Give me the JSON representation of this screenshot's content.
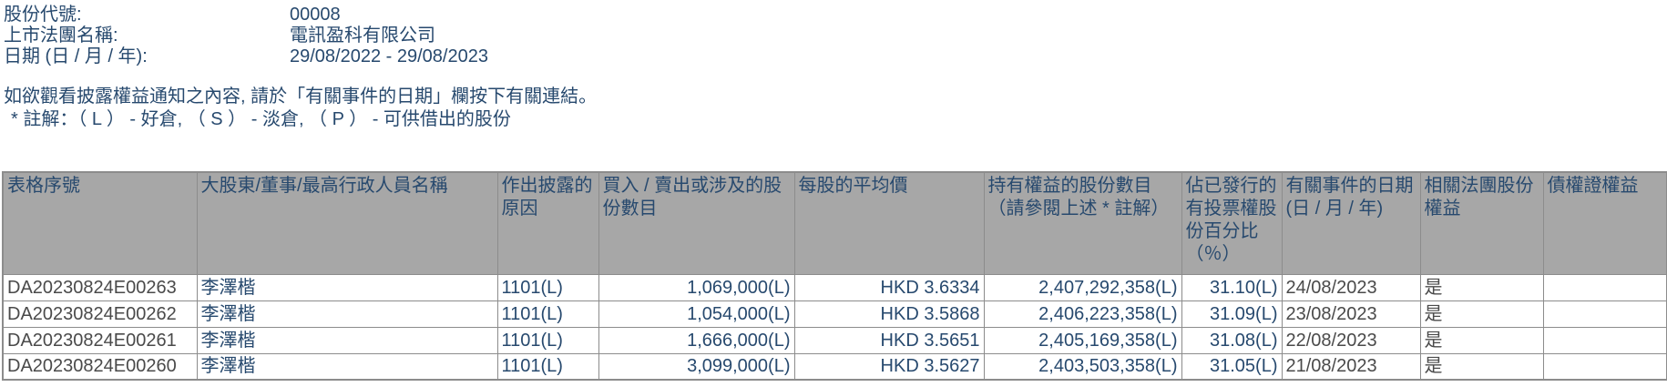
{
  "info": {
    "stock_code_label": "股份代號:",
    "stock_code": "00008",
    "corporation_label": "上市法團名稱:",
    "corporation": "電訊盈科有限公司",
    "date_label": "日期 (日 / 月 / 年):",
    "date_range": "29/08/2022 - 29/08/2023"
  },
  "notes": {
    "instruction": "如欲觀看披露權益通知之內容, 請於「有關事件的日期」欄按下有關連結。",
    "legend": "* 註解：（ L ） - 好倉, （ S ） - 淡倉, （ P ） - 可供借出的股份"
  },
  "table": {
    "headers": [
      "表格序號",
      "大股東/董事/最高行政人員名稱",
      "作出披露的原因",
      "買入 / 賣出或涉及的股份數目",
      "每股的平均價",
      "持有權益的股份數目（請參閱上述 * 註解）",
      "佔已發行的有投票權股份百分比（％）",
      "有關事件的日期 (日 / 月 / 年)",
      "相關法團股份權益",
      "債權證權益"
    ],
    "rows": [
      {
        "serial": "DA20230824E00263",
        "name": "李澤楷",
        "reason": "1101(L)",
        "shares": "1,069,000(L)",
        "price": "HKD 3.6334",
        "holding": "2,407,292,358(L)",
        "pct": "31.10(L)",
        "date": "24/08/2023",
        "related": "是",
        "debenture": ""
      },
      {
        "serial": "DA20230824E00262",
        "name": "李澤楷",
        "reason": "1101(L)",
        "shares": "1,054,000(L)",
        "price": "HKD 3.5868",
        "holding": "2,406,223,358(L)",
        "pct": "31.09(L)",
        "date": "23/08/2023",
        "related": "是",
        "debenture": ""
      },
      {
        "serial": "DA20230824E00261",
        "name": "李澤楷",
        "reason": "1101(L)",
        "shares": "1,666,000(L)",
        "price": "HKD 3.5651",
        "holding": "2,405,169,358(L)",
        "pct": "31.08(L)",
        "date": "22/08/2023",
        "related": "是",
        "debenture": ""
      },
      {
        "serial": "DA20230824E00260",
        "name": "李澤楷",
        "reason": "1101(L)",
        "shares": "3,099,000(L)",
        "price": "HKD 3.5627",
        "holding": "2,403,503,358(L)",
        "pct": "31.05(L)",
        "date": "21/08/2023",
        "related": "是",
        "debenture": ""
      }
    ]
  },
  "colors": {
    "text_navy": "#27496e",
    "text_gray": "#4a4a4a",
    "header_bg": "#a7a7a7",
    "border": "#8c8c8c"
  }
}
